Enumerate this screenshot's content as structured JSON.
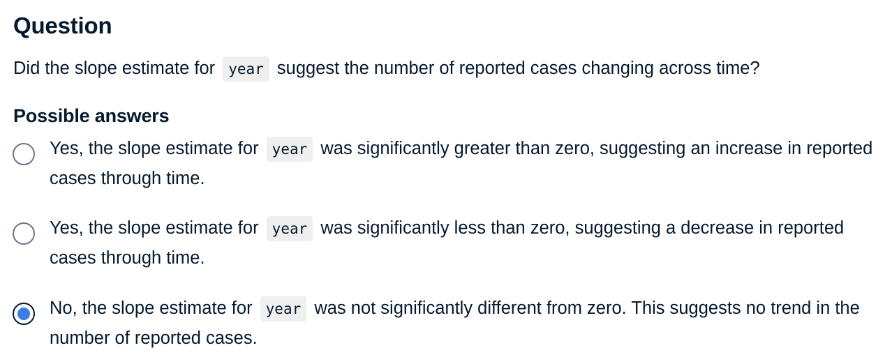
{
  "question": {
    "title": "Question",
    "text_before": "Did the slope estimate for",
    "code": "year",
    "text_after": "suggest the number of reported cases changing across time?"
  },
  "answers": {
    "title": "Possible answers",
    "options": [
      {
        "before": "Yes, the slope estimate for",
        "code": "year",
        "after": "was significantly greater than zero, suggesting an increase in reported cases through time.",
        "selected": false
      },
      {
        "before": "Yes, the slope estimate for",
        "code": "year",
        "after": "was significantly less than zero, suggesting a decrease in reported cases through time.",
        "selected": false
      },
      {
        "before": "No, the slope estimate for",
        "code": "year",
        "after": "was not significantly different from zero. This suggests no trend in the number of reported cases.",
        "selected": true
      }
    ]
  },
  "colors": {
    "text": "#05192d",
    "radio_selected": "#3b7ee8",
    "code_bg": "#efefef"
  }
}
